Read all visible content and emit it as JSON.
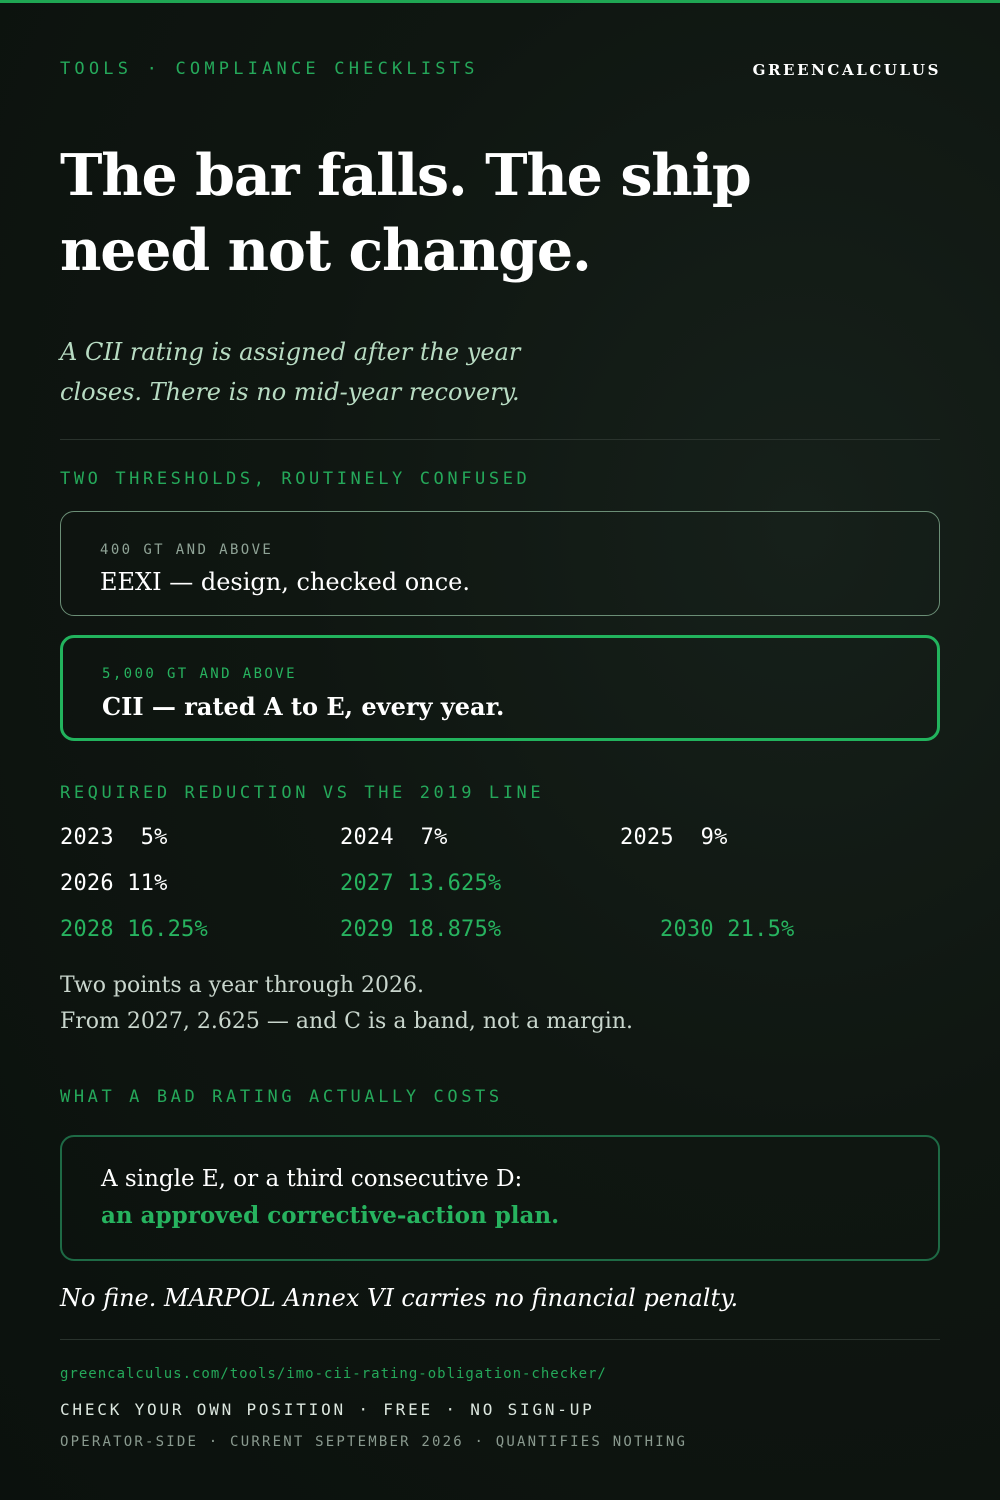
{
  "header": {
    "breadcrumb": "TOOLS · COMPLIANCE CHECKLISTS",
    "brand": "GREENCALCULUS"
  },
  "headline": "The bar falls. The ship need not change.",
  "lede": "A CII rating is assigned after the year closes. There is no mid-year recovery.",
  "thresholds": {
    "label": "TWO THRESHOLDS, ROUTINELY CONFUSED",
    "eexi": {
      "kicker": "400 GT AND ABOVE",
      "title": "EEXI — design, checked once."
    },
    "cii": {
      "kicker": "5,000 GT AND ABOVE",
      "title": "CII — rated A to E, every year."
    }
  },
  "reduction": {
    "label": "REQUIRED REDUCTION VS THE 2019 LINE",
    "rows": [
      {
        "year": "2023",
        "value": "5%",
        "highlight": false
      },
      {
        "year": "2024",
        "value": "7%",
        "highlight": false
      },
      {
        "year": "2025",
        "value": "9%",
        "highlight": false
      },
      {
        "year": "2026",
        "value": "11%",
        "highlight": false
      },
      {
        "year": "2027",
        "value": "13.625%",
        "highlight": true
      },
      {
        "year": "2028",
        "value": "16.25%",
        "highlight": true
      },
      {
        "year": "2029",
        "value": "18.875%",
        "highlight": true
      },
      {
        "year": "2030",
        "value": "21.5%",
        "highlight": true
      }
    ],
    "note_line1": "Two points a year through 2026.",
    "note_line2": "From 2027, 2.625 — and C is a band, not a margin."
  },
  "costs": {
    "label": "WHAT A BAD RATING ACTUALLY COSTS",
    "line1": "A single E, or a third consecutive D:",
    "line2": "an approved corrective-action plan.",
    "no_fine": "No fine. MARPOL Annex VI carries no financial penalty."
  },
  "footer": {
    "url": "greencalculus.com/tools/imo-cii-rating-obligation-checker/",
    "cta": "CHECK YOUR OWN POSITION · FREE · NO SIGN-UP",
    "meta": "OPERATOR-SIDE · CURRENT SEPTEMBER 2026 · QUANTIFIES NOTHING"
  },
  "colors": {
    "accent": "#25a85a",
    "background": "#0f1611",
    "card_border_muted": "#6b8e76",
    "card_border_active": "#22b35d"
  }
}
